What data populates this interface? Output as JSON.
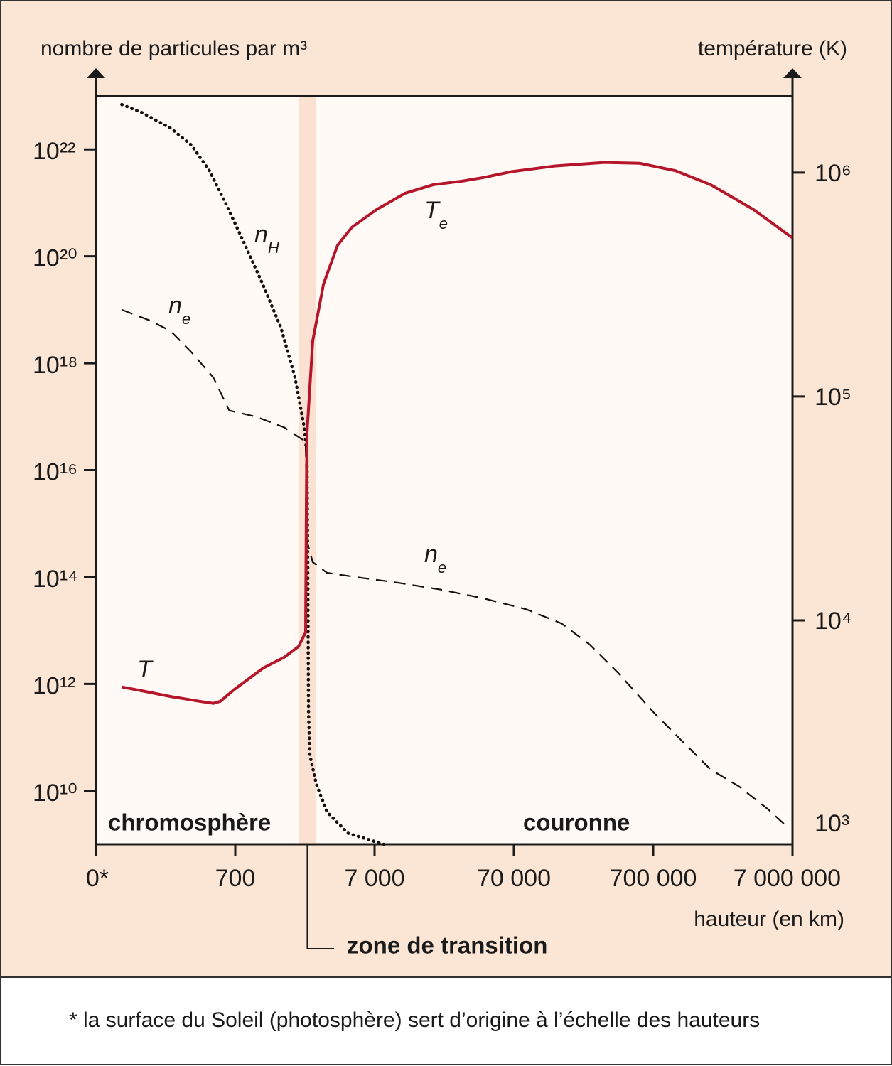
{
  "chart_data": {
    "type": "line",
    "y_label": "nombre de particules par m³",
    "y2_label": "température (K)",
    "x_label": "hauteur (en km)",
    "xscale": "symlog",
    "yscale": "log",
    "y2scale": "log",
    "xlim": [
      0,
      7000000
    ],
    "xticks": [
      {
        "value": 0,
        "label": "0*"
      },
      700,
      {
        "value": 7000,
        "label": "7 000"
      },
      {
        "value": 70000,
        "label": "70 000"
      },
      {
        "value": 700000,
        "label": "700 000"
      },
      {
        "value": 7000000,
        "label": "7 000 000"
      }
    ],
    "ylim": [
      1000000000.0,
      1e+23
    ],
    "yticks": [
      {
        "value": 10000000000.0,
        "label": "10¹⁰"
      },
      {
        "value": 1000000000000.0,
        "label": "10¹²"
      },
      {
        "value": 100000000000000.0,
        "label": "10¹⁴"
      },
      {
        "value": 1e+16,
        "label": "10¹⁶"
      },
      {
        "value": 1e+18,
        "label": "10¹⁸"
      },
      {
        "value": 1e+20,
        "label": "10²⁰"
      },
      {
        "value": 1e+22,
        "label": "10²²"
      }
    ],
    "y2lim": [
      1000,
      2200000
    ],
    "y2ticks": [
      {
        "value": 1000,
        "label": "10³"
      },
      {
        "value": 10000,
        "label": "10⁴"
      },
      {
        "value": 100000,
        "label": "10⁵"
      },
      {
        "value": 1000000,
        "label": "10⁶"
      }
    ],
    "series": [
      {
        "color": "#111111",
        "style": "dotted",
        "x": [
          130,
          230,
          375,
          480,
          570,
          660,
          825,
          1110,
          1490,
          1880,
          2190,
          2290,
          2320,
          2350,
          2400,
          2670,
          3190,
          4530,
          8150
        ],
        "values": [
          6.9e+22,
          4.9e+22,
          2.5e+22,
          1.2e+22,
          4e+21,
          8.5e+20,
          1.6e+20,
          2.9e+19,
          4.6e+18,
          5.4e+17,
          6.3e+16,
          1.9e+16,
          130000000000000.0,
          300000000000.0,
          47000000000.0,
          13500000000.0,
          4000000000.0,
          1600000000.0,
          1000000000.0
        ]
      },
      {
        "color": "#111111",
        "style": "dashed",
        "x": [
          130,
          270,
          375,
          480,
          590,
          670,
          985,
          1570,
          2240,
          2290,
          2520,
          3190,
          5100,
          10300,
          20900,
          42300,
          85400,
          154000,
          246000,
          393000,
          708000,
          1130000,
          1810000,
          2900000,
          4640000,
          6450000
        ],
        "values": [
          1e+19,
          6.3e+18,
          4e+18,
          1.6e+18,
          5.4e+17,
          1.3e+17,
          1e+17,
          6.3e+16,
          3.4e+16,
          470000000000000.0,
          190000000000000.0,
          120000000000000.0,
          100000000000000.0,
          78000000000000.0,
          58000000000000.0,
          40000000000000.0,
          25000000000000.0,
          13500000000000.0,
          5400000000000.0,
          1600000000000.0,
          290000000000.0,
          85000000000.0,
          25000000000.0,
          12000000000.0,
          4600000000.0,
          2100000000.0
        ]
      },
      {
        "color": "#b5162b",
        "style": "solid",
        "axis": "y2",
        "x": [
          130,
          230,
          375,
          520,
          590,
          625,
          696,
          1110,
          1570,
          1990,
          2240,
          2270,
          2290,
          2520,
          3010,
          3800,
          4810,
          7250,
          11600,
          18500,
          29700,
          42300,
          67500,
          137000,
          311000,
          560000,
          1010000,
          1810000,
          3670000,
          7000000
        ],
        "values": [
          5040,
          4850,
          4570,
          4350,
          4260,
          4350,
          4920,
          6120,
          6840,
          7640,
          8830,
          35400,
          68400,
          177000,
          318000,
          474000,
          570000,
          684000,
          809000,
          883000,
          916000,
          951000,
          1010000,
          1070000,
          1110000,
          1100000,
          1020000,
          883000,
          684000,
          511000
        ]
      }
    ],
    "annotations": [
      {
        "text": "n",
        "sub": "H"
      },
      {
        "text": "n",
        "sub": "e"
      },
      {
        "text": "n",
        "sub": "e"
      },
      {
        "text": "T"
      },
      {
        "text": "T",
        "sub": "e"
      }
    ],
    "region_labels": [
      "chromosphère",
      "couronne"
    ],
    "transition_zone": [
      1990,
      2670
    ],
    "transition_label": "zone de transition",
    "band_color": "#fbe1d2",
    "footnote": "* la surface du Soleil (photosphère) sert d’origine à l’échelle des hauteurs"
  }
}
